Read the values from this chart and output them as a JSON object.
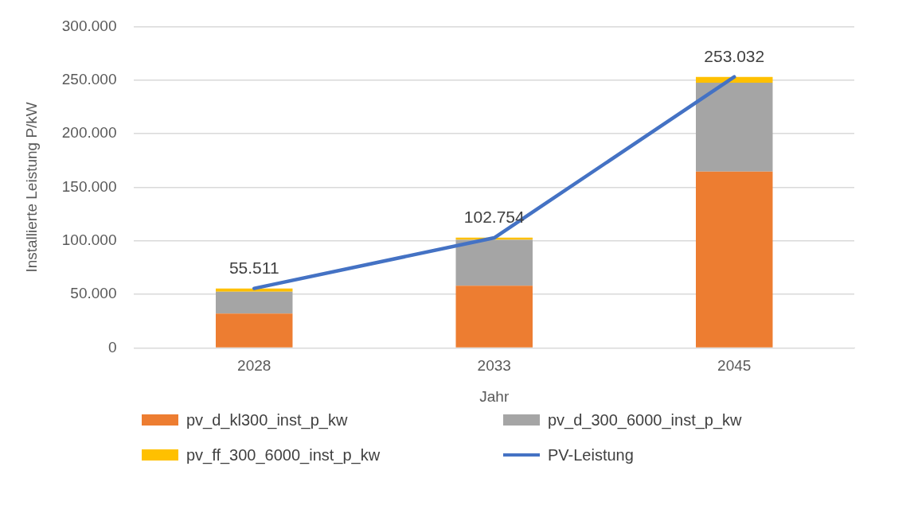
{
  "chart_data": {
    "type": "bar",
    "stacked": true,
    "xlabel": "Jahr",
    "ylabel": "Installierte Leistung P/kW",
    "categories": [
      "2028",
      "2033",
      "2045"
    ],
    "series": [
      {
        "name": "pv_d_kl300_inst_p_kw",
        "color": "#ed7d31",
        "values": [
          32000,
          58000,
          164500
        ]
      },
      {
        "name": "pv_d_300_6000_inst_p_kw",
        "color": "#a5a5a5",
        "values": [
          20500,
          43000,
          83000
        ]
      },
      {
        "name": "pv_ff_300_6000_inst_p_kw",
        "color": "#ffc000",
        "values": [
          3000,
          2000,
          5500
        ]
      },
      {
        "name": "PV-Leistung",
        "type": "line",
        "color": "#4472c4",
        "values": [
          55511,
          102754,
          253032
        ],
        "value_labels": [
          "55.511",
          "102.754",
          "253.032"
        ]
      }
    ],
    "ylim": [
      0,
      300000
    ],
    "yticks": [
      0,
      {
        "value": 50000,
        "label": "50.000"
      },
      {
        "value": 100000,
        "label": "100.000"
      },
      {
        "value": 150000,
        "label": "150.000"
      },
      {
        "value": 200000,
        "label": "200.000"
      },
      {
        "value": 250000,
        "label": "250.000"
      },
      {
        "value": 300000,
        "label": "300.000"
      }
    ],
    "grid": "y",
    "legend": "bottom",
    "marker": "none",
    "line_style": "solid"
  }
}
